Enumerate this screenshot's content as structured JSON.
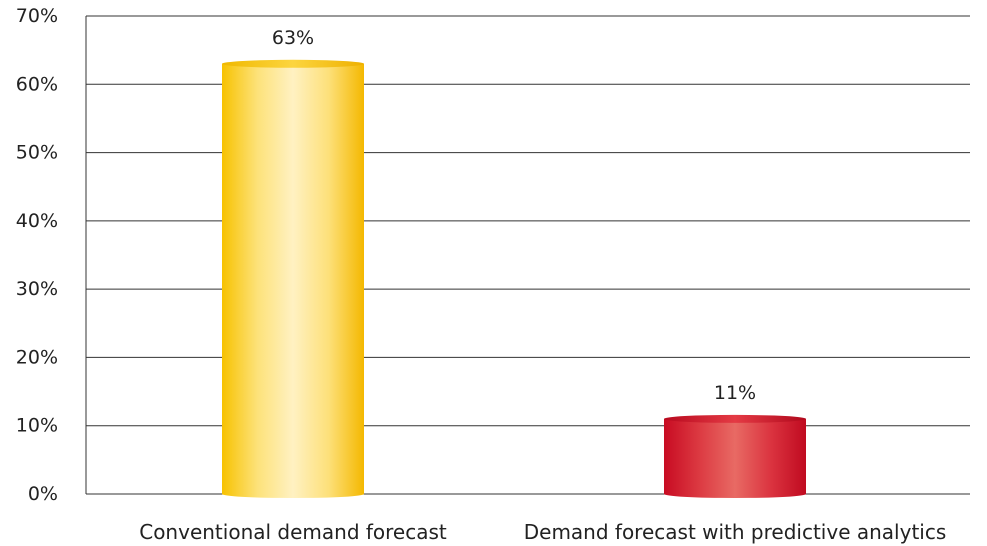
{
  "chart_data": {
    "type": "bar",
    "categories": [
      "Conventional demand forecast",
      "Demand forecast with predictive analytics"
    ],
    "values": [
      63,
      11
    ],
    "value_labels": [
      "63%",
      "11%"
    ],
    "ylim": [
      0,
      70
    ],
    "y_ticks": [
      0,
      10,
      20,
      30,
      40,
      50,
      60,
      70
    ],
    "y_tick_labels": [
      "0%",
      "10%",
      "20%",
      "30%",
      "40%",
      "50%",
      "60%",
      "70%"
    ],
    "grid": true,
    "legend": "none",
    "bar_style": "3d-cylinder",
    "colors": [
      "#f5c400",
      "#d6122a"
    ],
    "title": "",
    "xlabel": "",
    "ylabel": ""
  }
}
